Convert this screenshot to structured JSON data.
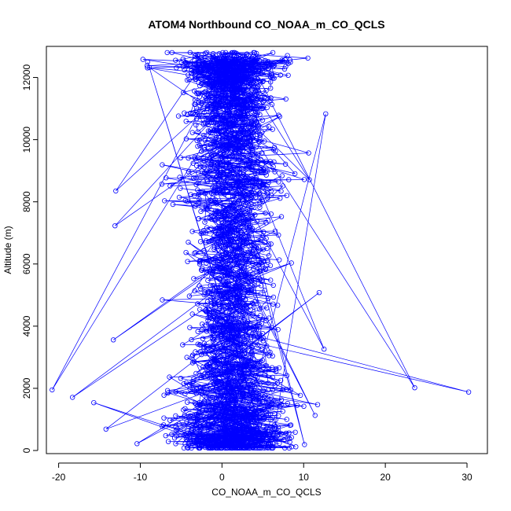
{
  "chart_data": {
    "type": "scatter",
    "title": "ATOM4 Northbound CO_NOAA_m_CO_QCLS",
    "xlabel": "CO_NOAA_m_CO_QCLS",
    "ylabel": "Altitude (m)",
    "xlim": [
      -21.5,
      32.5
    ],
    "ylim": [
      -100,
      13000
    ],
    "xticks": [
      -20,
      -10,
      0,
      10,
      20,
      30
    ],
    "yticks": [
      0,
      2000,
      4000,
      6000,
      8000,
      10000,
      12000
    ],
    "xtick_labels": [
      "-20",
      "-10",
      "0",
      "10",
      "20",
      "30"
    ],
    "ytick_labels": [
      "0",
      "2000",
      "4000",
      "6000",
      "8000",
      "10000",
      "12000"
    ],
    "grid": false,
    "marker": "open-circle",
    "connected_lines": true,
    "series_color": "#0000ff",
    "n_points": 2600,
    "outliers": [
      {
        "x": 30.2,
        "y": 1880
      },
      {
        "x": 23.6,
        "y": 2020
      },
      {
        "x": -20.8,
        "y": 1950
      },
      {
        "x": -18.3,
        "y": 1710
      },
      {
        "x": -15.7,
        "y": 1540
      },
      {
        "x": -14.2,
        "y": 690
      },
      {
        "x": -13.1,
        "y": 7230
      },
      {
        "x": -13.0,
        "y": 8350
      },
      {
        "x": -13.3,
        "y": 3560
      },
      {
        "x": 12.7,
        "y": 10830
      },
      {
        "x": 11.9,
        "y": 5080
      },
      {
        "x": 12.5,
        "y": 3260
      },
      {
        "x": 10.7,
        "y": 8710
      },
      {
        "x": 11.4,
        "y": 1130
      },
      {
        "x": -9.1,
        "y": 12500
      },
      {
        "x": -10.4,
        "y": 220
      },
      {
        "x": 10.1,
        "y": 190
      }
    ]
  }
}
